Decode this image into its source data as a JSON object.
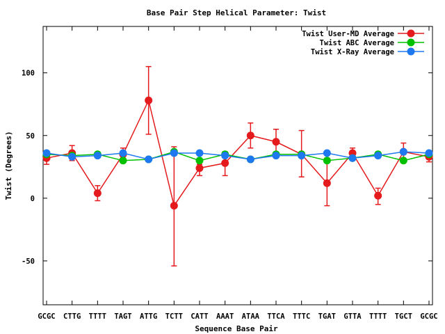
{
  "chart_data": {
    "type": "line",
    "title": "Base Pair Step Helical Parameter: Twist",
    "xlabel": "Sequence Base Pair",
    "ylabel": "Twist (Degrees)",
    "ylim": [
      -85,
      137
    ],
    "yticks": [
      -50,
      0,
      50,
      100
    ],
    "ytick_labels": [
      "-50",
      "0",
      "50",
      "100"
    ],
    "grid": false,
    "legend_position": "top-right",
    "categories": [
      "GCGC",
      "CTTG",
      "TTTT",
      "TAGT",
      "ATTG",
      "TCTT",
      "CATT",
      "AAAT",
      "ATAA",
      "TTCA",
      "TTTC",
      "TGAT",
      "GTTA",
      "TTTT",
      "TGCT",
      "GCGC"
    ],
    "series": [
      {
        "name": "Twist User-MD Average",
        "color": "#e41a1c",
        "values": [
          32,
          36,
          4,
          35,
          78,
          -6,
          24,
          28,
          50,
          45,
          35,
          12,
          36,
          2,
          37,
          33
        ],
        "err_low": [
          27,
          30,
          -2,
          30,
          51,
          -54,
          18,
          18,
          40,
          35,
          17,
          -6,
          33,
          -5,
          31,
          29
        ],
        "err_high": [
          36,
          42,
          10,
          40,
          105,
          41,
          27,
          37,
          60,
          55,
          54,
          32,
          40,
          8,
          44,
          37
        ]
      },
      {
        "name": "Twist ABC Average",
        "color": "#00c000",
        "values": [
          35,
          34,
          35,
          30,
          31,
          37,
          30,
          35,
          31,
          35,
          35,
          30,
          32,
          35,
          30,
          35
        ]
      },
      {
        "name": "Twist X-Ray Average",
        "color": "#1e78f0",
        "values": [
          36,
          33,
          34,
          36,
          31,
          36,
          36,
          34,
          31,
          34,
          34,
          36,
          32,
          34,
          37,
          36
        ]
      }
    ]
  }
}
